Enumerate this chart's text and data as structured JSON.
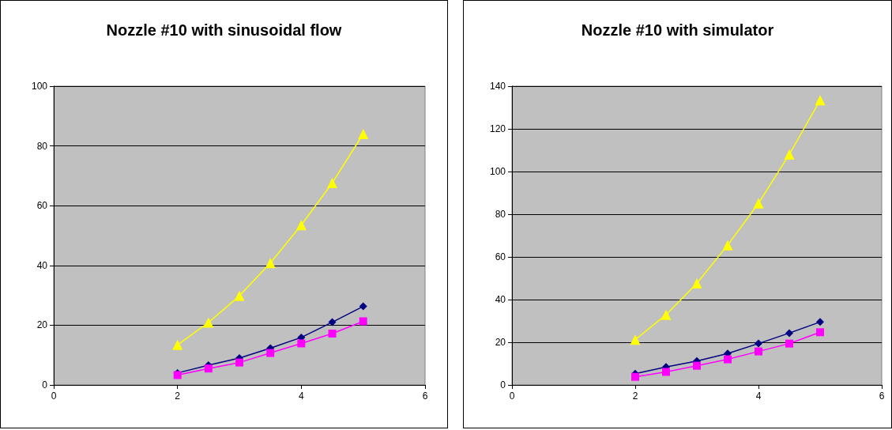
{
  "chart_data": [
    {
      "type": "line",
      "title": "Nozzle #10 with sinusoidal flow",
      "x": [
        2,
        2.5,
        3,
        3.5,
        4,
        4.5,
        5
      ],
      "xlim": [
        0,
        6
      ],
      "xticks": [
        0,
        2,
        4,
        6
      ],
      "ylim": [
        0,
        100
      ],
      "yticks": [
        0,
        20,
        40,
        60,
        80,
        100
      ],
      "grid": "y",
      "series": [
        {
          "color": "#000080",
          "marker": "diamond",
          "values": [
            4,
            6.6,
            9,
            12.3,
            15.9,
            21,
            26.3
          ]
        },
        {
          "color": "#ff00ff",
          "marker": "square",
          "values": [
            3.3,
            5.5,
            7.5,
            10.7,
            13.9,
            17.2,
            21.3
          ]
        },
        {
          "color": "#ffff00",
          "marker": "triangle",
          "values": [
            13.4,
            20.9,
            29.8,
            40.8,
            53.5,
            67.6,
            84
          ]
        }
      ]
    },
    {
      "type": "line",
      "title": "Nozzle #10 with simulator",
      "x": [
        2,
        2.5,
        3,
        3.5,
        4,
        4.5,
        5
      ],
      "xlim": [
        0,
        6
      ],
      "xticks": [
        0,
        2,
        4,
        6
      ],
      "ylim": [
        0,
        140
      ],
      "yticks": [
        0,
        20,
        40,
        60,
        80,
        100,
        120,
        140
      ],
      "grid": "y",
      "series": [
        {
          "color": "#000080",
          "marker": "diamond",
          "values": [
            5.3,
            8.4,
            11.2,
            14.7,
            19.4,
            24.3,
            29.5
          ]
        },
        {
          "color": "#ff00ff",
          "marker": "square",
          "values": [
            3.8,
            6.1,
            9,
            12,
            15.7,
            19.4,
            24.7
          ]
        },
        {
          "color": "#ffff00",
          "marker": "triangle",
          "values": [
            21.2,
            32.9,
            47.6,
            65.5,
            85.1,
            108,
            133.4
          ]
        }
      ]
    }
  ]
}
